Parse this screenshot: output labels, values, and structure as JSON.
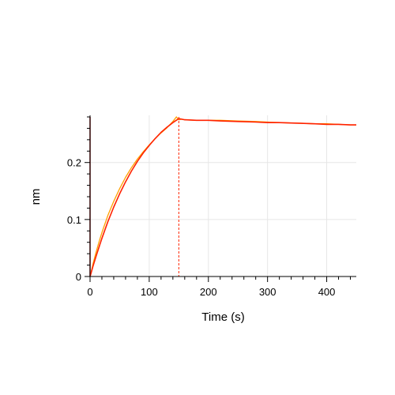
{
  "chart_data": {
    "type": "line",
    "title": "",
    "xlabel": "Time (s)",
    "ylabel": "nm",
    "xlim": [
      0,
      450
    ],
    "ylim": [
      0,
      0.28
    ],
    "x_ticks": [
      0,
      100,
      200,
      300,
      400
    ],
    "x_tick_labels": [
      "0",
      "100",
      "200",
      "300",
      "400"
    ],
    "y_ticks": [
      0,
      0.1,
      0.2
    ],
    "y_tick_labels": [
      "0",
      "0.1",
      "0.2"
    ],
    "grid": true,
    "markers": [
      {
        "x": 0,
        "style": "solid",
        "color": "#8b0000"
      },
      {
        "x": 150,
        "style": "dashed",
        "color": "#ff2200"
      }
    ],
    "series": [
      {
        "role": "measured",
        "color": "#ffa000",
        "x": [
          0,
          2,
          5,
          10,
          15,
          20,
          30,
          40,
          50,
          60,
          70,
          80,
          90,
          100,
          110,
          120,
          130,
          140,
          146,
          150,
          155,
          160,
          180,
          200,
          220,
          250,
          280,
          300,
          320,
          350,
          380,
          400,
          420,
          440,
          450
        ],
        "values": [
          0.0,
          0.008,
          0.022,
          0.042,
          0.06,
          0.077,
          0.107,
          0.132,
          0.154,
          0.174,
          0.191,
          0.206,
          0.219,
          0.231,
          0.242,
          0.252,
          0.261,
          0.272,
          0.28,
          0.275,
          0.276,
          0.275,
          0.274,
          0.274,
          0.274,
          0.273,
          0.272,
          0.271,
          0.27,
          0.269,
          0.268,
          0.268,
          0.267,
          0.266,
          0.266
        ]
      },
      {
        "role": "fit",
        "color": "#ff2200",
        "x": [
          0,
          2,
          5,
          10,
          15,
          20,
          30,
          40,
          50,
          60,
          70,
          80,
          90,
          100,
          110,
          120,
          130,
          140,
          150,
          155,
          160,
          180,
          200,
          220,
          250,
          280,
          300,
          320,
          350,
          380,
          400,
          420,
          440,
          450
        ],
        "values": [
          0.0,
          0.007,
          0.018,
          0.035,
          0.051,
          0.067,
          0.096,
          0.122,
          0.145,
          0.166,
          0.185,
          0.202,
          0.217,
          0.23,
          0.242,
          0.253,
          0.262,
          0.27,
          0.277,
          0.276,
          0.275,
          0.274,
          0.274,
          0.273,
          0.272,
          0.271,
          0.27,
          0.27,
          0.269,
          0.268,
          0.267,
          0.267,
          0.266,
          0.266
        ]
      }
    ]
  }
}
